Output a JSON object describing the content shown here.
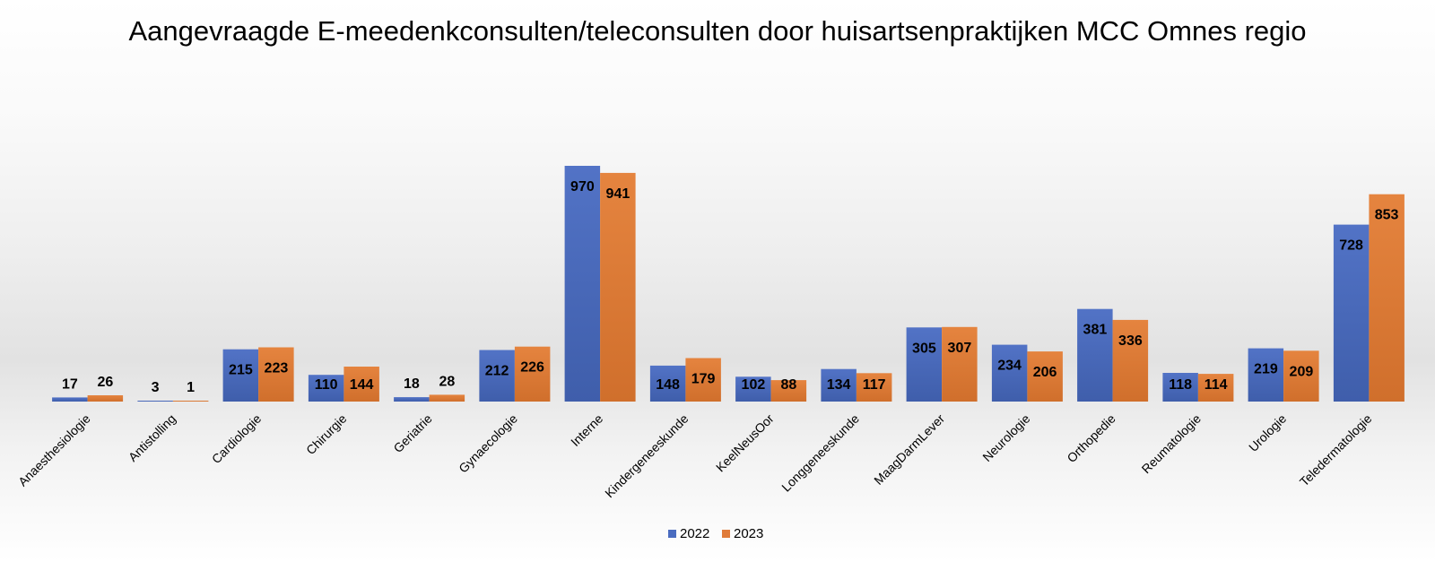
{
  "chart_data": {
    "type": "bar",
    "title": "Aangevraagde E-meedenkconsulten/teleconsulten door huisartsenpraktijken MCC Omnes regio",
    "xlabel": "",
    "ylabel": "",
    "ylim": [
      0,
      1000
    ],
    "grid": false,
    "legend_position": "bottom-center",
    "categories": [
      "Anaesthesiologie",
      "Antistolling",
      "Cardiologie",
      "Chirurgie",
      "Geriatrie",
      "Gynaecologie",
      "Interne",
      "Kindergeneeskunde",
      "KeelNeusOor",
      "Longgeneeskunde",
      "MaagDarmLever",
      "Neurologie",
      "Orthopedie",
      "Reumatologie",
      "Urologie",
      "Teledermatologie"
    ],
    "series": [
      {
        "name": "2022",
        "color": "#4a6cc0",
        "values": [
          17,
          3,
          215,
          110,
          18,
          212,
          970,
          148,
          102,
          134,
          305,
          234,
          381,
          118,
          219,
          728
        ]
      },
      {
        "name": "2023",
        "color": "#e07b39",
        "values": [
          26,
          1,
          223,
          144,
          28,
          226,
          941,
          179,
          88,
          117,
          307,
          206,
          336,
          114,
          209,
          853
        ]
      }
    ]
  }
}
